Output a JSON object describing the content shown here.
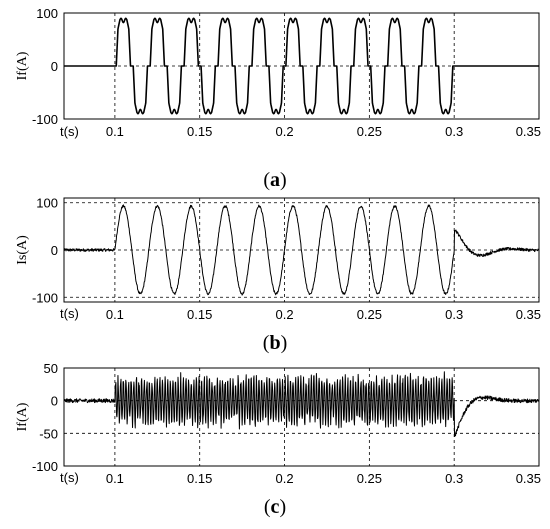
{
  "chart_data": [
    {
      "type": "line",
      "ylabel": "If(A)",
      "xlabel": "t(s)",
      "caption_letter": "a",
      "xlim": [
        0.07,
        0.35
      ],
      "ylim": [
        -100,
        100
      ],
      "xticks": [
        0.1,
        0.15,
        0.2,
        0.25,
        0.3,
        0.35
      ],
      "xtick_labels": [
        "0.1",
        "0.15",
        "0.2",
        "0.25",
        "0.3",
        "0.35"
      ],
      "yticks": [
        100,
        0,
        -100
      ],
      "ytick_labels": [
        "100",
        "0",
        "-100"
      ],
      "grid": true,
      "waveform": {
        "kind": "six-step quasi-square",
        "start": 0.1,
        "end": 0.3,
        "frequency_hz": 50,
        "peak": 90,
        "step": 70,
        "before_after": 0
      }
    },
    {
      "type": "line",
      "ylabel": "Is(A)",
      "xlabel": "t(s)",
      "caption_letter": "b",
      "xlim": [
        0.07,
        0.35
      ],
      "ylim": [
        -110,
        110
      ],
      "xticks": [
        0.1,
        0.15,
        0.2,
        0.25,
        0.3,
        0.35
      ],
      "xtick_labels": [
        "0.1",
        "0.15",
        "0.2",
        "0.25",
        "0.3",
        "0.35"
      ],
      "yticks": [
        100,
        0,
        -100
      ],
      "ytick_labels": [
        "100",
        "0",
        "-100"
      ],
      "grid": true,
      "waveform": {
        "kind": "sinusoid",
        "start": 0.1,
        "end": 0.3,
        "frequency_hz": 50,
        "amplitude": 93,
        "after_transient_peak": 45
      }
    },
    {
      "type": "line",
      "ylabel": "If(A)",
      "xlabel": "t(s)",
      "caption_letter": "c",
      "xlim": [
        0.07,
        0.35
      ],
      "ylim": [
        -100,
        50
      ],
      "xticks": [
        0.1,
        0.15,
        0.2,
        0.25,
        0.3,
        0.35
      ],
      "xtick_labels": [
        "0.1",
        "0.15",
        "0.2",
        "0.25",
        "0.3",
        "0.35"
      ],
      "yticks": [
        50,
        0,
        -50,
        -100
      ],
      "ytick_labels": [
        "50",
        "0",
        "-50",
        "-100"
      ],
      "grid": true,
      "waveform": {
        "kind": "filter-current ripple",
        "start": 0.1,
        "end": 0.3,
        "ripple_amplitude": 40,
        "after_transient_min": -57,
        "after_transient_max": 20
      }
    }
  ],
  "captions": [
    {
      "open": "(",
      "letter": "a",
      "close": ")"
    },
    {
      "open": "(",
      "letter": "b",
      "close": ")"
    },
    {
      "open": "(",
      "letter": "c",
      "close": ")"
    }
  ]
}
